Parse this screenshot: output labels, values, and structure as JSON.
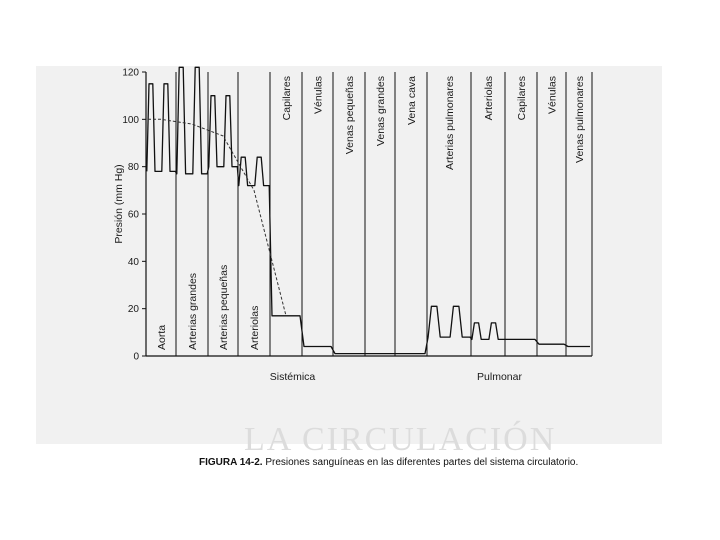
{
  "figure": {
    "caption_number": "FIGURA 14-2.",
    "caption_text": "Presiones sanguíneas en las diferentes partes del sistema circulatorio.",
    "background_text": "LA CIRCULACIÓN"
  },
  "chart_data": {
    "type": "line",
    "ylabel": "Presión (mm Hg)",
    "ylim": [
      0,
      120
    ],
    "yticks": [
      0,
      20,
      40,
      60,
      80,
      100,
      120
    ],
    "x_axis": "categorical segments of the circulatory system",
    "groups": [
      {
        "name": "Sistémica",
        "segments": [
          "Aorta",
          "Arterias grandes",
          "Arterias pequeñas",
          "Arteriolas",
          "Capilares",
          "Vénulas",
          "Venas pequeñas",
          "Venas grandes",
          "Vena cava"
        ]
      },
      {
        "name": "Pulmonar",
        "segments": [
          "Arterias pulmonares",
          "Arteriolas",
          "Capilares",
          "Vénulas",
          "Venas pulmonares"
        ]
      }
    ],
    "segments": [
      "Aorta",
      "Arterias grandes",
      "Arterias pequeñas",
      "Arteriolas",
      "Capilares",
      "Vénulas",
      "Venas pequeñas",
      "Venas grandes",
      "Vena cava",
      "Arterias pulmonares",
      "Arteriolas",
      "Capilares",
      "Vénulas",
      "Venas pulmonares"
    ],
    "series": [
      {
        "style": "pulsatile",
        "points": [
          {
            "segment": "Aorta",
            "systolic": 115,
            "diastolic": 78
          },
          {
            "segment": "Arterias grandes",
            "systolic": 122,
            "diastolic": 77
          },
          {
            "segment": "Arterias pequeñas",
            "systolic": 110,
            "diastolic": 80
          },
          {
            "segment": "Arteriolas",
            "systolic": 84,
            "diastolic": 72
          },
          {
            "segment": "Capilares",
            "value": 17
          },
          {
            "segment": "Vénulas",
            "value": 4
          },
          {
            "segment": "Venas pequeñas",
            "value": 1
          },
          {
            "segment": "Venas grandes",
            "value": 1
          },
          {
            "segment": "Vena cava",
            "value": 1
          },
          {
            "segment": "Arterias pulmonares",
            "systolic": 21,
            "diastolic": 8
          },
          {
            "segment": "Arteriolas",
            "systolic": 14,
            "diastolic": 7
          },
          {
            "segment": "Capilares",
            "value": 7
          },
          {
            "segment": "Vénulas",
            "value": 5
          },
          {
            "segment": "Venas pulmonares",
            "value": 4
          }
        ]
      },
      {
        "style": "mean-dashed",
        "points": [
          {
            "segment": "Aorta",
            "value": 100
          },
          {
            "segment": "Arterias grandes",
            "value": 98
          },
          {
            "segment": "Arterias pequeñas",
            "value": 93
          },
          {
            "segment": "Arteriolas",
            "value": 70
          },
          {
            "segment": "Capilares",
            "value": 17
          }
        ]
      }
    ]
  }
}
